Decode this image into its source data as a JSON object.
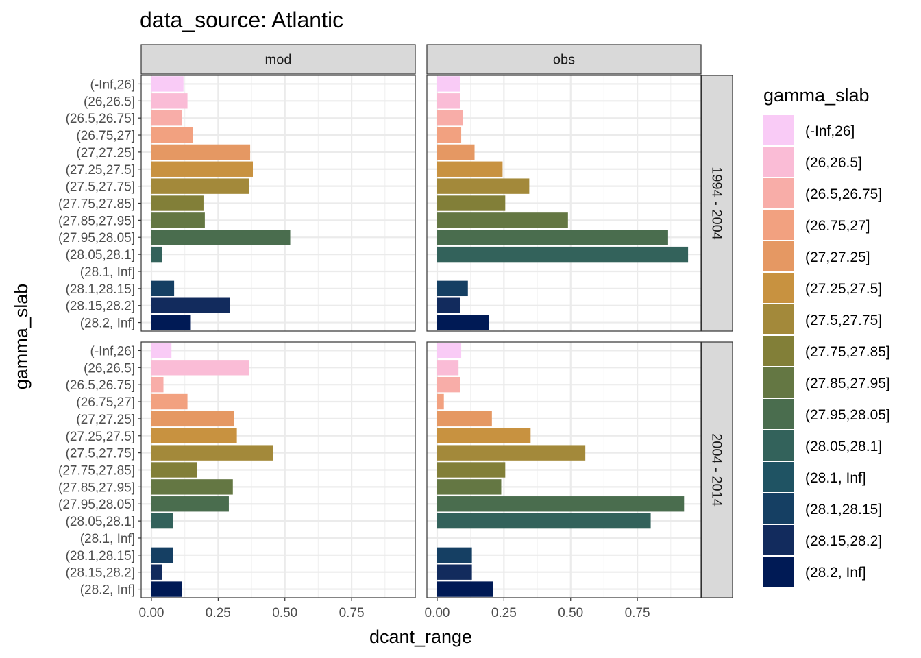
{
  "chart_data": {
    "type": "bar",
    "orientation": "horizontal",
    "title": "data_source: Atlantic",
    "xlabel": "dcant_range",
    "ylabel": "gamma_slab",
    "xlim": [
      0,
      0.95
    ],
    "xticks": [
      0,
      0.25,
      0.5,
      0.75
    ],
    "xtick_labels": [
      "0.00",
      "0.25",
      "0.50",
      "0.75"
    ],
    "grid": true,
    "legend": {
      "title": "gamma_slab",
      "position": "right"
    },
    "categories": [
      "(-Inf,26]",
      "(26,26.5]",
      "(26.5,26.75]",
      "(26.75,27]",
      "(27,27.25]",
      "(27.25,27.5]",
      "(27.5,27.75]",
      "(27.75,27.85]",
      "(27.85,27.95]",
      "(27.95,28.05]",
      "(28.05,28.1]",
      "(28.1, Inf]",
      "(28.1,28.15]",
      "(28.15,28.2]",
      "(28.2, Inf]"
    ],
    "colors": [
      "#F9CBF6",
      "#FABCD6",
      "#F8ADA8",
      "#F2A180",
      "#E59863",
      "#C89240",
      "#A3893A",
      "#827F38",
      "#647743",
      "#4A6D4E",
      "#33625B",
      "#1F5363",
      "#153F63",
      "#122B5D",
      "#001A55"
    ],
    "columns": [
      "mod",
      "obs"
    ],
    "rows": [
      "1994 - 2004",
      "2004 - 2014"
    ],
    "panels": [
      {
        "column": "mod",
        "row": "1994 - 2004",
        "values": [
          0.12,
          0.135,
          0.115,
          0.155,
          0.37,
          0.38,
          0.365,
          0.195,
          0.2,
          0.52,
          0.04,
          null,
          0.085,
          0.295,
          0.145
        ]
      },
      {
        "column": "obs",
        "row": "1994 - 2004",
        "values": [
          0.085,
          0.085,
          0.095,
          0.09,
          0.14,
          0.245,
          0.345,
          0.255,
          0.49,
          0.865,
          0.94,
          null,
          0.115,
          0.085,
          0.195
        ]
      },
      {
        "column": "mod",
        "row": "2004 - 2014",
        "values": [
          0.075,
          0.365,
          0.045,
          0.135,
          0.31,
          0.32,
          0.455,
          0.17,
          0.305,
          0.29,
          0.08,
          null,
          0.08,
          0.04,
          0.115
        ]
      },
      {
        "column": "obs",
        "row": "2004 - 2014",
        "values": [
          0.09,
          0.08,
          0.085,
          0.025,
          0.205,
          0.35,
          0.555,
          0.255,
          0.24,
          0.925,
          0.8,
          null,
          0.13,
          0.13,
          0.21
        ]
      }
    ]
  }
}
